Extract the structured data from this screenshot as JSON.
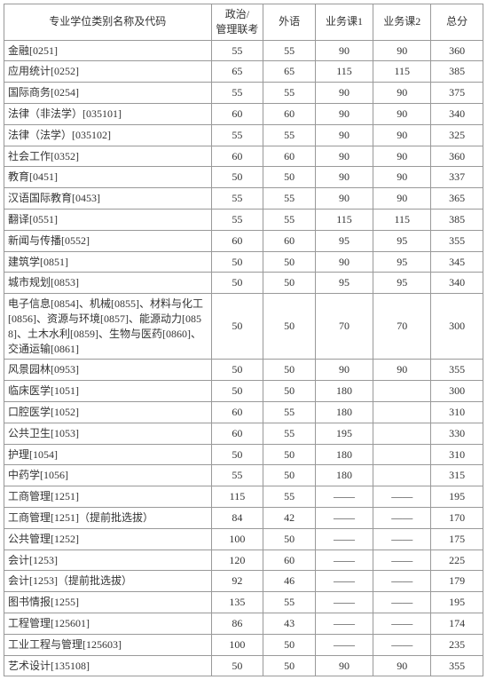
{
  "columns": [
    "专业学位类别名称及代码",
    "政治/\n管理联考",
    "外语",
    "业务课1",
    "业务课2",
    "总分"
  ],
  "rows": [
    {
      "name": "金融[0251]",
      "c1": "55",
      "c2": "55",
      "c3": "90",
      "c4": "90",
      "c5": "360"
    },
    {
      "name": "应用统计[0252]",
      "c1": "65",
      "c2": "65",
      "c3": "115",
      "c4": "115",
      "c5": "385"
    },
    {
      "name": "国际商务[0254]",
      "c1": "55",
      "c2": "55",
      "c3": "90",
      "c4": "90",
      "c5": "375"
    },
    {
      "name": "法律（非法学）[035101]",
      "c1": "60",
      "c2": "60",
      "c3": "90",
      "c4": "90",
      "c5": "340"
    },
    {
      "name": "法律（法学）[035102]",
      "c1": "55",
      "c2": "55",
      "c3": "90",
      "c4": "90",
      "c5": "325"
    },
    {
      "name": "社会工作[0352]",
      "c1": "60",
      "c2": "60",
      "c3": "90",
      "c4": "90",
      "c5": "360"
    },
    {
      "name": "教育[0451]",
      "c1": "50",
      "c2": "50",
      "c3": "90",
      "c4": "90",
      "c5": "337"
    },
    {
      "name": "汉语国际教育[0453]",
      "c1": "55",
      "c2": "55",
      "c3": "90",
      "c4": "90",
      "c5": "365"
    },
    {
      "name": "翻译[0551]",
      "c1": "55",
      "c2": "55",
      "c3": "115",
      "c4": "115",
      "c5": "385"
    },
    {
      "name": "新闻与传播[0552]",
      "c1": "60",
      "c2": "60",
      "c3": "95",
      "c4": "95",
      "c5": "355"
    },
    {
      "name": "建筑学[0851]",
      "c1": "50",
      "c2": "50",
      "c3": "90",
      "c4": "95",
      "c5": "345"
    },
    {
      "name": "城市规划[0853]",
      "c1": "50",
      "c2": "50",
      "c3": "95",
      "c4": "95",
      "c5": "340"
    },
    {
      "name": "电子信息[0854]、机械[0855]、材料与化工[0856]、资源与环境[0857]、能源动力[0858]、土木水利[0859]、生物与医药[0860]、交通运输[0861]",
      "c1": "50",
      "c2": "50",
      "c3": "70",
      "c4": "70",
      "c5": "300"
    },
    {
      "name": "风景园林[0953]",
      "c1": "50",
      "c2": "50",
      "c3": "90",
      "c4": "90",
      "c5": "355"
    },
    {
      "name": "临床医学[1051]",
      "c1": "50",
      "c2": "50",
      "c3": "180",
      "c4": "",
      "c5": "300"
    },
    {
      "name": "口腔医学[1052]",
      "c1": "60",
      "c2": "55",
      "c3": "180",
      "c4": "",
      "c5": "310"
    },
    {
      "name": "公共卫生[1053]",
      "c1": "60",
      "c2": "55",
      "c3": "195",
      "c4": "",
      "c5": "330"
    },
    {
      "name": "护理[1054]",
      "c1": "50",
      "c2": "50",
      "c3": "180",
      "c4": "",
      "c5": "310"
    },
    {
      "name": "中药学[1056]",
      "c1": "55",
      "c2": "50",
      "c3": "180",
      "c4": "",
      "c5": "315"
    },
    {
      "name": "工商管理[1251]",
      "c1": "115",
      "c2": "55",
      "c3": "——",
      "c4": "——",
      "c5": "195"
    },
    {
      "name": "工商管理[1251]（提前批选拔）",
      "c1": "84",
      "c2": "42",
      "c3": "——",
      "c4": "——",
      "c5": "170"
    },
    {
      "name": "公共管理[1252]",
      "c1": "100",
      "c2": "50",
      "c3": "——",
      "c4": "——",
      "c5": "175"
    },
    {
      "name": "会计[1253]",
      "c1": "120",
      "c2": "60",
      "c3": "——",
      "c4": "——",
      "c5": "225"
    },
    {
      "name": "会计[1253]（提前批选拔）",
      "c1": "92",
      "c2": "46",
      "c3": "——",
      "c4": "——",
      "c5": "179"
    },
    {
      "name": "图书情报[1255]",
      "c1": "135",
      "c2": "55",
      "c3": "——",
      "c4": "——",
      "c5": "195"
    },
    {
      "name": "工程管理[125601]",
      "c1": "86",
      "c2": "43",
      "c3": "——",
      "c4": "——",
      "c5": "174"
    },
    {
      "name": "工业工程与管理[125603]",
      "c1": "100",
      "c2": "50",
      "c3": "——",
      "c4": "——",
      "c5": "235"
    },
    {
      "name": "艺术设计[135108]",
      "c1": "50",
      "c2": "50",
      "c3": "90",
      "c4": "90",
      "c5": "355"
    }
  ]
}
